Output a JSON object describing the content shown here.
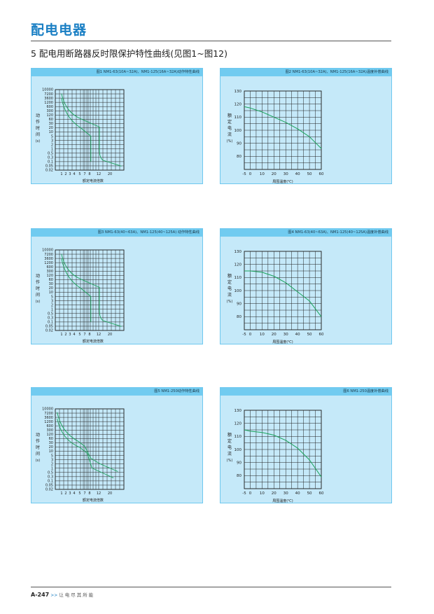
{
  "header": {
    "title": "配电电器"
  },
  "section_title": "5 配电用断路器反时限保护特性曲线(见图1~图12)",
  "footer": {
    "page": "A-247",
    "arrows": ">>",
    "slogan": "让电尽其所能"
  },
  "trip_common": {
    "y_ticks": [
      "10000",
      "7200",
      "3600",
      "1200",
      "600",
      "300",
      "120",
      "60",
      "30",
      "20",
      "10",
      "5",
      "3",
      "2",
      "1",
      "0.5",
      "0.3",
      "0.1",
      "0.05",
      "0.02"
    ],
    "x_ticks": [
      "1",
      "2",
      "3",
      "4",
      "5",
      "7",
      "8",
      "12",
      "20"
    ],
    "xlabel": "额定电流倍数",
    "ylabel": [
      "动",
      "作",
      "时",
      "间",
      "(s)"
    ]
  },
  "temp_common": {
    "y_ticks": [
      "130",
      "120",
      "110",
      "100",
      "90",
      "80"
    ],
    "x_ticks": [
      "-5",
      "0",
      "10",
      "20",
      "30",
      "40",
      "50",
      "60"
    ],
    "xlabel": "周围温度(℃)",
    "ylabel": [
      "额",
      "定",
      "电",
      "流",
      "(%)"
    ]
  },
  "panels": [
    {
      "caption": "图1 NM1-63(10A~32A)、NM1-125(16A~32A)动作特性曲线"
    },
    {
      "caption": "图2 NM1-63(10A~32A)、NM1-125(16A~32A)温度补偿曲线"
    },
    {
      "caption": "图3 NM1-63(40~63A)、NM1-125(40~125A) 动作特性曲线"
    },
    {
      "caption": "图4 NM1-63(40~63A)、NM1-125(40~125A)温度补偿曲线"
    },
    {
      "caption": "图5 NM1-250动作特性曲线"
    },
    {
      "caption": "图6 NM1-250温度补偿曲线"
    }
  ],
  "colors": {
    "accent": "#1a7fc4",
    "panel_bg": "#c5e9f9",
    "caption_bar": "#71cbf0",
    "curve": "#1aa35c"
  }
}
